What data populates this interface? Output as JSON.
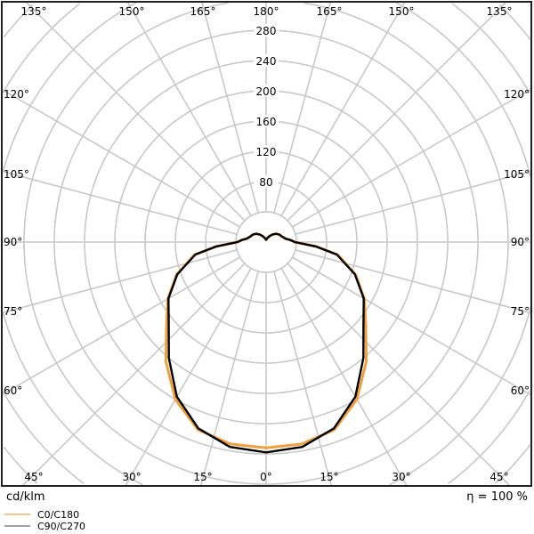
{
  "chart_data": {
    "type": "polar",
    "unit_label": "cd/klm",
    "efficiency_label": "η = 100 %",
    "radial_ticks": [
      80,
      120,
      160,
      200,
      240,
      280
    ],
    "radial_grid_step": 40,
    "angle_labels_top": [
      "135°",
      "150°",
      "165°",
      "180°",
      "165°",
      "150°",
      "135°"
    ],
    "angle_labels_left": [
      "120°",
      "105°",
      "90°",
      "75°",
      "60°"
    ],
    "angle_labels_right": [
      "120°",
      "105°",
      "90°",
      "75°",
      "60°"
    ],
    "angle_labels_bottom": [
      "45°",
      "30°",
      "15°",
      "0°",
      "15°",
      "30°",
      "45°"
    ],
    "angular_grid_step_deg": 15,
    "gamma": [
      0,
      10,
      20,
      30,
      40,
      50,
      60,
      70,
      80,
      85,
      90,
      95,
      100,
      110,
      120,
      130,
      140,
      150,
      160,
      170,
      180
    ],
    "series": [
      {
        "name": "C0/C180",
        "color": "#f0a040",
        "values": [
          272,
          271,
          264,
          240,
          206,
          172,
          150,
          126,
          96,
          66,
          38,
          32,
          26,
          22,
          20,
          17,
          13,
          9,
          6,
          4,
          3
        ]
      },
      {
        "name": "C90/C270",
        "color": "#666666",
        "curve_color": "#000000",
        "values": [
          278,
          275,
          262,
          236,
          200,
          168,
          149,
          125,
          95,
          66,
          38,
          32,
          26,
          22,
          20,
          17,
          13,
          9,
          6,
          4,
          3
        ]
      }
    ],
    "grid": true,
    "legend": "bottom-left"
  }
}
